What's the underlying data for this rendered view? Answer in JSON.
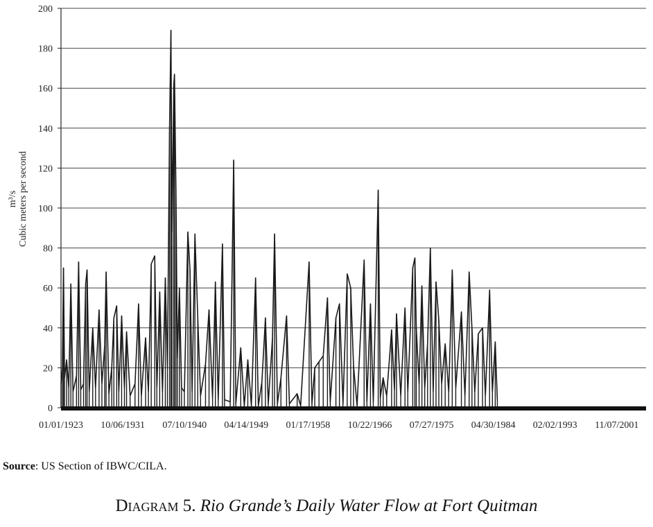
{
  "chart_data": {
    "type": "line",
    "ylabel_unit": "m³/s",
    "ylabel": "Cubic meters per second",
    "ylim": [
      0,
      200
    ],
    "yticks": [
      0,
      20,
      40,
      60,
      80,
      100,
      120,
      140,
      160,
      180,
      200
    ],
    "xlim": [
      "01/01/1923",
      "12/31/2005"
    ],
    "xtick_labels": [
      "01/01/1923",
      "10/06/1931",
      "07/10/1940",
      "04/14/1949",
      "01/17/1958",
      "10/22/1966",
      "07/27/1975",
      "04/30/1984",
      "02/02/1993",
      "11/07/2001"
    ],
    "grid": "horizontal",
    "series": [
      {
        "color": "#1a1a1a",
        "points": [
          [
            "1923.0",
            12
          ],
          [
            "1923.2",
            20
          ],
          [
            "1923.35",
            70
          ],
          [
            "1923.5",
            15
          ],
          [
            "1923.8",
            24
          ],
          [
            "1924.1",
            10
          ],
          [
            "1924.4",
            62
          ],
          [
            "1924.7",
            8
          ],
          [
            "1925.2",
            16
          ],
          [
            "1925.5",
            73
          ],
          [
            "1925.8",
            9
          ],
          [
            "1926.2",
            12
          ],
          [
            "1926.5",
            62
          ],
          [
            "1926.7",
            69
          ],
          [
            "1927.0",
            8
          ],
          [
            "1927.5",
            40
          ],
          [
            "1927.9",
            10
          ],
          [
            "1928.4",
            49
          ],
          [
            "1928.8",
            12
          ],
          [
            "1929.2",
            31
          ],
          [
            "1929.4",
            68
          ],
          [
            "1929.8",
            7
          ],
          [
            "1930.2",
            20
          ],
          [
            "1930.5",
            45
          ],
          [
            "1930.9",
            51
          ],
          [
            "1931.2",
            8
          ],
          [
            "1931.6",
            46
          ],
          [
            "1932.0",
            10
          ],
          [
            "1932.3",
            38
          ],
          [
            "1932.8",
            6
          ],
          [
            "1933.5",
            12
          ],
          [
            "1934.0",
            52
          ],
          [
            "1934.4",
            6
          ],
          [
            "1935.0",
            35
          ],
          [
            "1935.4",
            8
          ],
          [
            "1935.8",
            72
          ],
          [
            "1936.3",
            76
          ],
          [
            "1936.6",
            10
          ],
          [
            "1937.0",
            58
          ],
          [
            "1937.4",
            8
          ],
          [
            "1937.8",
            65
          ],
          [
            "1938.1",
            20
          ],
          [
            "1938.4",
            141
          ],
          [
            "1938.6",
            189
          ],
          [
            "1938.75",
            88
          ],
          [
            "1939.0",
            162
          ],
          [
            "1939.1",
            167
          ],
          [
            "1939.3",
            109
          ],
          [
            "1939.5",
            25
          ],
          [
            "1939.8",
            60
          ],
          [
            "1940.1",
            10
          ],
          [
            "1940.5",
            8
          ],
          [
            "1941.0",
            88
          ],
          [
            "1941.3",
            69
          ],
          [
            "1941.6",
            8
          ],
          [
            "1942.0",
            87
          ],
          [
            "1942.4",
            45
          ],
          [
            "1942.8",
            6
          ],
          [
            "1943.5",
            22
          ],
          [
            "1944.0",
            49
          ],
          [
            "1944.5",
            5
          ],
          [
            "1944.9",
            63
          ],
          [
            "1945.3",
            4
          ],
          [
            "1945.9",
            82
          ],
          [
            "1946.2",
            4
          ],
          [
            "1947.0",
            3
          ],
          [
            "1947.5",
            124
          ],
          [
            "1947.8",
            2
          ],
          [
            "1948.5",
            30
          ],
          [
            "1949.0",
            1
          ],
          [
            "1949.5",
            24
          ],
          [
            "1950.0",
            1
          ],
          [
            "1950.6",
            65
          ],
          [
            "1951.0",
            1
          ],
          [
            "1951.5",
            13
          ],
          [
            "1952.0",
            45
          ],
          [
            "1952.4",
            2
          ],
          [
            "1953.0",
            35
          ],
          [
            "1953.3",
            87
          ],
          [
            "1953.7",
            2
          ],
          [
            "1954.2",
            15
          ],
          [
            "1955.0",
            46
          ],
          [
            "1955.4",
            2
          ],
          [
            "1956.5",
            7
          ],
          [
            "1957.0",
            1
          ],
          [
            "1958.2",
            73
          ],
          [
            "1958.6",
            2
          ],
          [
            "1959.0",
            20
          ],
          [
            "1959.6",
            23
          ],
          [
            "1960.2",
            26
          ],
          [
            "1960.8",
            55
          ],
          [
            "1961.2",
            3
          ],
          [
            "1962.0",
            45
          ],
          [
            "1962.5",
            52
          ],
          [
            "1963.0",
            2
          ],
          [
            "1963.6",
            67
          ],
          [
            "1964.1",
            60
          ],
          [
            "1964.5",
            21
          ],
          [
            "1965.0",
            1
          ],
          [
            "1966.0",
            74
          ],
          [
            "1966.4",
            3
          ],
          [
            "1966.9",
            52
          ],
          [
            "1967.3",
            3
          ],
          [
            "1968.0",
            109
          ],
          [
            "1968.3",
            5
          ],
          [
            "1968.7",
            15
          ],
          [
            "1969.2",
            6
          ],
          [
            "1969.9",
            39
          ],
          [
            "1970.3",
            9
          ],
          [
            "1970.6",
            47
          ],
          [
            "1971.2",
            6
          ],
          [
            "1971.8",
            50
          ],
          [
            "1972.2",
            8
          ],
          [
            "1972.9",
            70
          ],
          [
            "1973.2",
            75
          ],
          [
            "1973.4",
            40
          ],
          [
            "1973.8",
            12
          ],
          [
            "1974.2",
            61
          ],
          [
            "1974.6",
            10
          ],
          [
            "1975.0",
            32
          ],
          [
            "1975.4",
            80
          ],
          [
            "1975.8",
            8
          ],
          [
            "1976.2",
            63
          ],
          [
            "1976.6",
            44
          ],
          [
            "1977.0",
            12
          ],
          [
            "1977.5",
            32
          ],
          [
            "1978.0",
            8
          ],
          [
            "1978.5",
            69
          ],
          [
            "1979.0",
            10
          ],
          [
            "1979.8",
            48
          ],
          [
            "1980.3",
            6
          ],
          [
            "1980.9",
            68
          ],
          [
            "1981.3",
            40
          ],
          [
            "1981.7",
            8
          ],
          [
            "1982.2",
            37
          ],
          [
            "1982.8",
            40
          ],
          [
            "1983.2",
            6
          ],
          [
            "1983.8",
            59
          ],
          [
            "1984.2",
            8
          ],
          [
            "1984.6",
            33
          ],
          [
            "1984.9",
            4
          ]
        ]
      }
    ]
  },
  "source": {
    "label": "Source",
    "text": ": US Section of ",
    "org": "IBWC/CILA",
    "end": "."
  },
  "caption": {
    "number": "Diagram 5.",
    "title": "Rio Grande’s Daily Water Flow at Fort Quitman"
  }
}
